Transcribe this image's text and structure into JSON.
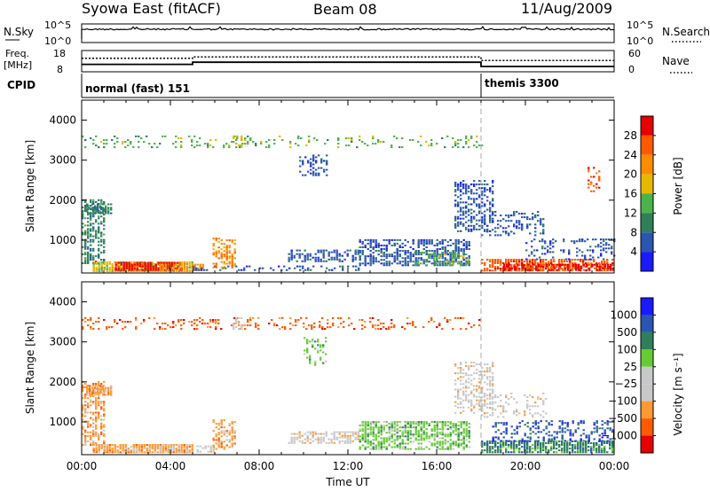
{
  "header": {
    "station": "Syowa East (fitACF)",
    "beam": "Beam 08",
    "date": "11/Aug/2009"
  },
  "top_panels": {
    "nsky_label": "N.Sky",
    "nsearch_label": "N.Search",
    "nsky_ticks": [
      "10^5",
      "10^0"
    ],
    "nsearch_ticks": [
      "10^5",
      "10^0"
    ],
    "freq_label_1": "Freq.",
    "freq_label_2": "[MHz]",
    "freq_ticks": [
      "18",
      "8"
    ],
    "nave_label": "Nave",
    "nave_ticks": [
      "60",
      "0"
    ],
    "cpid_label": "CPID",
    "cpid_segments": [
      {
        "start_hour": 0,
        "end_hour": 18,
        "text": "normal (fast) 151"
      },
      {
        "start_hour": 18,
        "end_hour": 24,
        "text": "themis 3300"
      }
    ],
    "freq_steps_mhz": [
      {
        "start_hour": 0,
        "end_hour": 5,
        "value": 11.5
      },
      {
        "start_hour": 5,
        "end_hour": 18,
        "value": 12.5
      },
      {
        "start_hour": 18,
        "end_hour": 24,
        "value": 10.5
      }
    ],
    "nave_steps": [
      {
        "start_hour": 0,
        "end_hour": 5,
        "value": 38
      },
      {
        "start_hour": 5,
        "end_hour": 18,
        "value": 42
      },
      {
        "start_hour": 18,
        "end_hour": 24,
        "value": 32
      }
    ]
  },
  "colors": {
    "power": [
      "#1a1aff",
      "#2a55b0",
      "#2f7f5a",
      "#4cb24c",
      "#e6b800",
      "#ff8c00",
      "#ff5a00",
      "#e60000"
    ],
    "velocity": [
      "#e60000",
      "#ff5a00",
      "#ff9933",
      "#c8c8c8",
      "#c8c8c8",
      "#66cc33",
      "#2f7f5a",
      "#2a55b0",
      "#1a1aff"
    ]
  },
  "chart_data": [
    {
      "type": "heatmap",
      "name": "power",
      "xlabel": "",
      "ylabel": "Slant Range [km]",
      "xlim": [
        0,
        24
      ],
      "ylim": [
        180,
        4500
      ],
      "yticks": [
        1000,
        2000,
        3000,
        4000
      ],
      "colorbar_label": "Power [dB]",
      "colorbar_ticks": [
        "28",
        "24",
        "20",
        "16",
        "12",
        "8",
        "4"
      ],
      "regions": [
        {
          "t0": 0.0,
          "t1": 1.0,
          "r0": 400,
          "r1": 2000,
          "c": 2,
          "d": 0.55
        },
        {
          "t0": 0.2,
          "t1": 1.4,
          "r0": 1650,
          "r1": 1900,
          "c": 2,
          "d": 0.8
        },
        {
          "t0": 0.5,
          "t1": 5.0,
          "r0": 200,
          "r1": 450,
          "c": 4,
          "d": 0.9
        },
        {
          "t0": 1.5,
          "t1": 4.5,
          "r0": 230,
          "r1": 420,
          "c": 7,
          "d": 0.85
        },
        {
          "t0": 3.5,
          "t1": 5.5,
          "r0": 230,
          "r1": 400,
          "c": 5,
          "d": 0.75
        },
        {
          "t0": 5.0,
          "t1": 12.5,
          "r0": 230,
          "r1": 330,
          "c": 1,
          "d": 0.3
        },
        {
          "t0": 5.9,
          "t1": 6.9,
          "r0": 300,
          "r1": 1050,
          "c": 5,
          "d": 0.55
        },
        {
          "t0": 9.3,
          "t1": 12.5,
          "r0": 450,
          "r1": 750,
          "c": 1,
          "d": 0.55
        },
        {
          "t0": 9.8,
          "t1": 11.0,
          "r0": 2600,
          "r1": 3100,
          "c": 1,
          "d": 0.4
        },
        {
          "t0": 12.5,
          "t1": 17.5,
          "r0": 350,
          "r1": 1000,
          "c": 1,
          "d": 0.55
        },
        {
          "t0": 15.0,
          "t1": 17.5,
          "r0": 350,
          "r1": 700,
          "c": 3,
          "d": 0.45
        },
        {
          "t0": 16.8,
          "t1": 18.5,
          "r0": 1200,
          "r1": 2500,
          "c": 1,
          "d": 0.45
        },
        {
          "t0": 18.0,
          "t1": 20.8,
          "r0": 1100,
          "r1": 1700,
          "c": 1,
          "d": 0.3
        },
        {
          "t0": 18.0,
          "t1": 24.0,
          "r0": 220,
          "r1": 500,
          "c": 6,
          "d": 0.75
        },
        {
          "t0": 19.0,
          "t1": 24.0,
          "r0": 230,
          "r1": 380,
          "c": 7,
          "d": 0.65
        },
        {
          "t0": 20.0,
          "t1": 24.0,
          "r0": 500,
          "r1": 1000,
          "c": 1,
          "d": 0.25
        },
        {
          "t0": 0.0,
          "t1": 18.0,
          "r0": 3300,
          "r1": 3600,
          "c": 3,
          "d": 0.2
        },
        {
          "t0": 6.8,
          "t1": 7.2,
          "r0": 3300,
          "r1": 3600,
          "c": 4,
          "d": 0.6
        },
        {
          "t0": 22.8,
          "t1": 23.3,
          "r0": 2200,
          "r1": 2800,
          "c": 6,
          "d": 0.35
        }
      ]
    },
    {
      "type": "heatmap",
      "name": "velocity",
      "xlabel": "Time UT",
      "ylabel": "Slant Range [km]",
      "xlim": [
        0,
        24
      ],
      "ylim": [
        180,
        4500
      ],
      "xticks": [
        "00:00",
        "04:00",
        "08:00",
        "12:00",
        "16:00",
        "20:00",
        "00:00"
      ],
      "yticks": [
        1000,
        2000,
        3000,
        4000
      ],
      "colorbar_label": "Velocity [m s⁻¹]",
      "colorbar_ticks": [
        "1000",
        "500",
        "100",
        "25",
        "−25",
        "−100",
        "−500",
        "−1000"
      ],
      "regions": [
        {
          "t0": 0.0,
          "t1": 1.0,
          "r0": 400,
          "r1": 2000,
          "c": 2,
          "d": 0.5
        },
        {
          "t0": 0.2,
          "t1": 1.4,
          "r0": 1650,
          "r1": 1900,
          "c": 2,
          "d": 0.8
        },
        {
          "t0": 0.5,
          "t1": 5.0,
          "r0": 220,
          "r1": 420,
          "c": 2,
          "d": 0.9
        },
        {
          "t0": 3.5,
          "t1": 6.0,
          "r0": 230,
          "r1": 400,
          "c": 3,
          "d": 0.45
        },
        {
          "t0": 5.9,
          "t1": 6.9,
          "r0": 300,
          "r1": 1050,
          "c": 2,
          "d": 0.55
        },
        {
          "t0": 9.3,
          "t1": 12.5,
          "r0": 450,
          "r1": 750,
          "c": 3,
          "d": 0.6
        },
        {
          "t0": 10.0,
          "t1": 11.0,
          "r0": 2400,
          "r1": 3100,
          "c": 5,
          "d": 0.35
        },
        {
          "t0": 12.5,
          "t1": 17.5,
          "r0": 300,
          "r1": 1000,
          "c": 5,
          "d": 0.6
        },
        {
          "t0": 16.8,
          "t1": 18.5,
          "r0": 1200,
          "r1": 2500,
          "c": 3,
          "d": 0.4
        },
        {
          "t0": 18.0,
          "t1": 21.0,
          "r0": 1100,
          "r1": 1700,
          "c": 3,
          "d": 0.25
        },
        {
          "t0": 18.0,
          "t1": 24.0,
          "r0": 220,
          "r1": 500,
          "c": 6,
          "d": 0.8
        },
        {
          "t0": 18.5,
          "t1": 24.0,
          "r0": 500,
          "r1": 1000,
          "c": 7,
          "d": 0.35
        },
        {
          "t0": 0.0,
          "t1": 18.0,
          "r0": 3300,
          "r1": 3600,
          "c": 1,
          "d": 0.2
        },
        {
          "t0": 6.8,
          "t1": 7.2,
          "r0": 3300,
          "r1": 3600,
          "c": 3,
          "d": 0.5
        }
      ]
    }
  ]
}
